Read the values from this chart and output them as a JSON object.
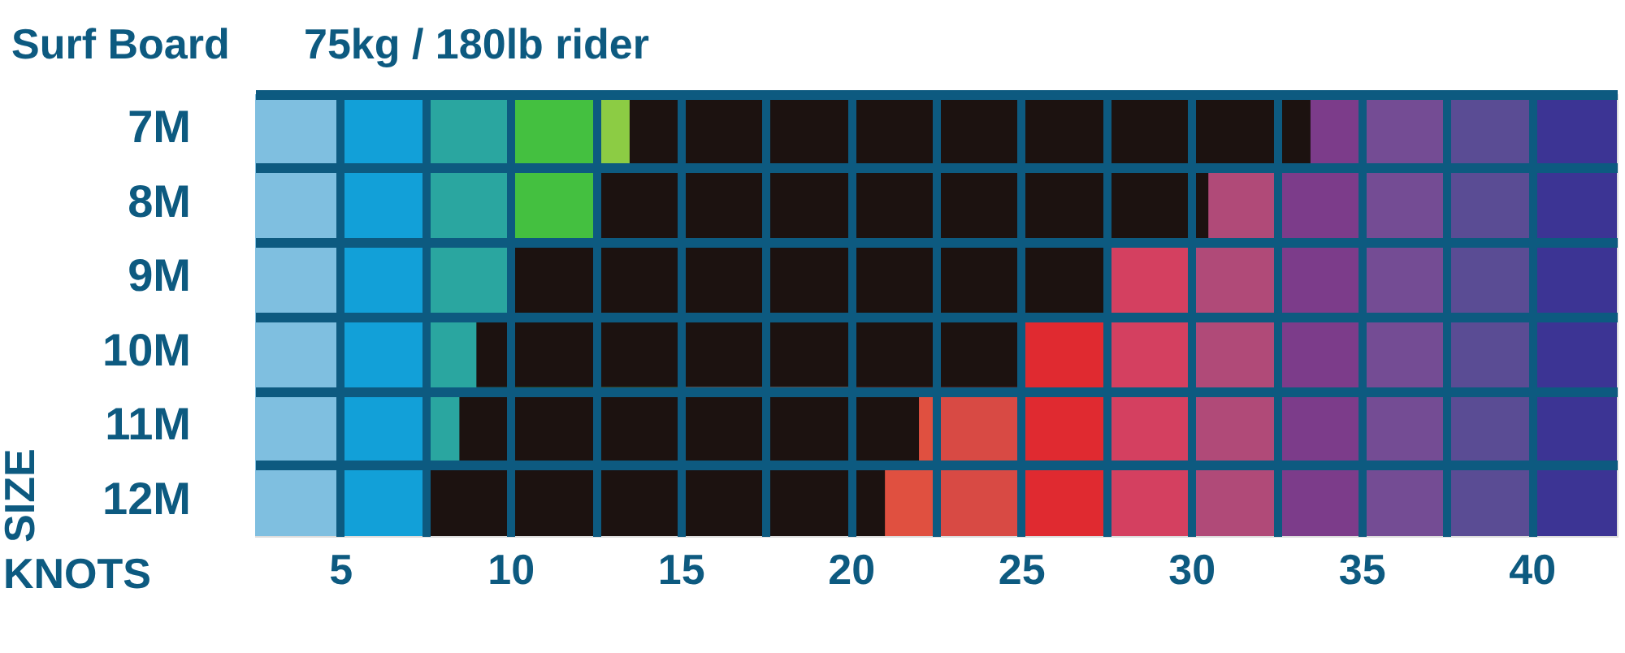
{
  "chart_data": {
    "type": "bar",
    "orientation": "horizontal",
    "title": "Surf Board",
    "subtitle": "75kg / 180lb rider",
    "xlabel": "KNOTS",
    "ylabel": "SIZE",
    "categories": [
      "7M",
      "8M",
      "9M",
      "10M",
      "11M",
      "12M"
    ],
    "series": [
      {
        "color": "#1c1210",
        "base": [
          13.5,
          12.5,
          10,
          9,
          8.5,
          7.5
        ],
        "values": [
          20,
          18,
          17.5,
          16,
          13.5,
          13.5
        ]
      }
    ],
    "xlim": [
      2.5,
      42.5
    ],
    "xticks": [
      5,
      {
        "value": 7.5,
        "label": null
      },
      10,
      {
        "value": 12.5,
        "label": null
      },
      15,
      {
        "value": 17.5,
        "label": null
      },
      20,
      {
        "value": 22.5,
        "label": null
      },
      25,
      {
        "value": 27.5,
        "label": null
      },
      30,
      {
        "value": 32.5,
        "label": null
      },
      35,
      {
        "value": 37.5,
        "label": null
      },
      40
    ],
    "grid": true,
    "bands": [
      {
        "axis": "x",
        "from": 2.5,
        "to": 5,
        "color": "#7fbfe0"
      },
      {
        "axis": "x",
        "from": 5,
        "to": 7.5,
        "color": "#12a0d8"
      },
      {
        "axis": "x",
        "from": 7.5,
        "to": 10,
        "color": "#2aa6a0"
      },
      {
        "axis": "x",
        "from": 10,
        "to": 12.5,
        "color": "#44c040"
      },
      {
        "axis": "x",
        "from": 12.5,
        "to": 15,
        "color": "#8ccc44"
      },
      {
        "axis": "x",
        "from": 20,
        "to": 22.5,
        "color": "#e05040"
      },
      {
        "axis": "x",
        "from": 22.5,
        "to": 25,
        "color": "#d84a44"
      },
      {
        "axis": "x",
        "from": 25,
        "to": 27.5,
        "color": "#e02a30"
      },
      {
        "axis": "x",
        "from": 27.5,
        "to": 30,
        "color": "#d44060"
      },
      {
        "axis": "x",
        "from": 30,
        "to": 32.5,
        "color": "#b04a78"
      },
      {
        "axis": "x",
        "from": 32.5,
        "to": 35,
        "color": "#7c3c8a"
      },
      {
        "axis": "x",
        "from": 35,
        "to": 37.5,
        "color": "#744c94"
      },
      {
        "axis": "x",
        "from": 37.5,
        "to": 40,
        "color": "#5a4c94"
      },
      {
        "axis": "x",
        "from": 40,
        "to": 42.5,
        "color": "#3c3494"
      }
    ]
  }
}
